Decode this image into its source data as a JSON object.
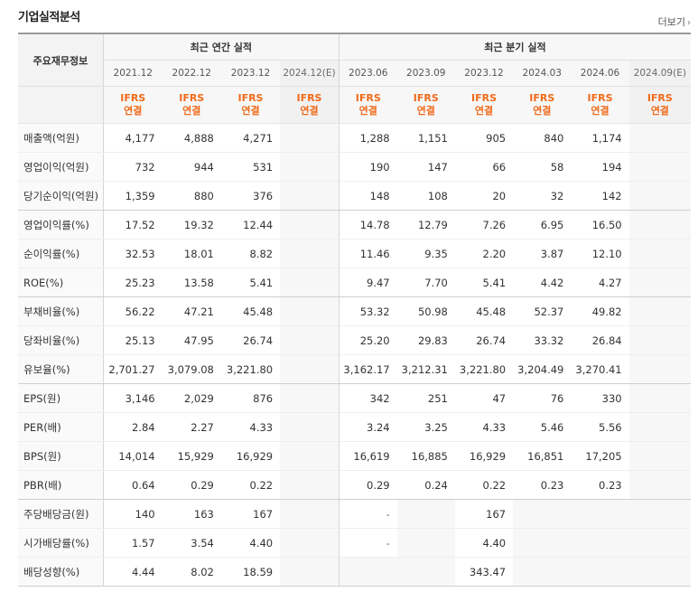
{
  "header": {
    "title": "기업실적분석",
    "more_label": "더보기"
  },
  "table": {
    "label_header": "주요재무정보",
    "annual_group": "최근 연간 실적",
    "quarter_group": "최근 분기 실적",
    "periods": [
      "2021.12",
      "2022.12",
      "2023.12",
      "2024.12(E)",
      "2023.06",
      "2023.09",
      "2023.12",
      "2024.03",
      "2024.06",
      "2024.09(E)"
    ],
    "basis_line1": "IFRS",
    "basis_line2": "연결",
    "rows": [
      {
        "label": "매출액(억원)",
        "values": [
          "4,177",
          "4,888",
          "4,271",
          "",
          "1,288",
          "1,151",
          "905",
          "840",
          "1,174",
          ""
        ]
      },
      {
        "label": "영업이익(억원)",
        "values": [
          "732",
          "944",
          "531",
          "",
          "190",
          "147",
          "66",
          "58",
          "194",
          ""
        ]
      },
      {
        "label": "당기순이익(억원)",
        "values": [
          "1,359",
          "880",
          "376",
          "",
          "148",
          "108",
          "20",
          "32",
          "142",
          ""
        ]
      },
      {
        "label": "영업이익률(%)",
        "values": [
          "17.52",
          "19.32",
          "12.44",
          "",
          "14.78",
          "12.79",
          "7.26",
          "6.95",
          "16.50",
          ""
        ]
      },
      {
        "label": "순이익률(%)",
        "values": [
          "32.53",
          "18.01",
          "8.82",
          "",
          "11.46",
          "9.35",
          "2.20",
          "3.87",
          "12.10",
          ""
        ]
      },
      {
        "label": "ROE(%)",
        "values": [
          "25.23",
          "13.58",
          "5.41",
          "",
          "9.47",
          "7.70",
          "5.41",
          "4.42",
          "4.27",
          ""
        ]
      },
      {
        "label": "부채비율(%)",
        "values": [
          "56.22",
          "47.21",
          "45.48",
          "",
          "53.32",
          "50.98",
          "45.48",
          "52.37",
          "49.82",
          ""
        ]
      },
      {
        "label": "당좌비율(%)",
        "values": [
          "25.13",
          "47.95",
          "26.74",
          "",
          "25.20",
          "29.83",
          "26.74",
          "33.32",
          "26.84",
          ""
        ]
      },
      {
        "label": "유보율(%)",
        "values": [
          "2,701.27",
          "3,079.08",
          "3,221.80",
          "",
          "3,162.17",
          "3,212.31",
          "3,221.80",
          "3,204.49",
          "3,270.41",
          ""
        ]
      },
      {
        "label": "EPS(원)",
        "values": [
          "3,146",
          "2,029",
          "876",
          "",
          "342",
          "251",
          "47",
          "76",
          "330",
          ""
        ]
      },
      {
        "label": "PER(배)",
        "values": [
          "2.84",
          "2.27",
          "4.33",
          "",
          "3.24",
          "3.25",
          "4.33",
          "5.46",
          "5.56",
          ""
        ]
      },
      {
        "label": "BPS(원)",
        "values": [
          "14,014",
          "15,929",
          "16,929",
          "",
          "16,619",
          "16,885",
          "16,929",
          "16,851",
          "17,205",
          ""
        ]
      },
      {
        "label": "PBR(배)",
        "values": [
          "0.64",
          "0.29",
          "0.22",
          "",
          "0.29",
          "0.24",
          "0.22",
          "0.23",
          "0.23",
          ""
        ]
      },
      {
        "label": "주당배당금(원)",
        "values": [
          "140",
          "163",
          "167",
          "",
          "-",
          "",
          "167",
          "",
          "",
          ""
        ]
      },
      {
        "label": "시가배당률(%)",
        "values": [
          "1.57",
          "3.54",
          "4.40",
          "",
          "-",
          "",
          "4.40",
          "",
          "",
          ""
        ]
      },
      {
        "label": "배당성향(%)",
        "values": [
          "4.44",
          "8.02",
          "18.59",
          "",
          "",
          "",
          "343.47",
          "",
          "",
          ""
        ]
      }
    ]
  }
}
